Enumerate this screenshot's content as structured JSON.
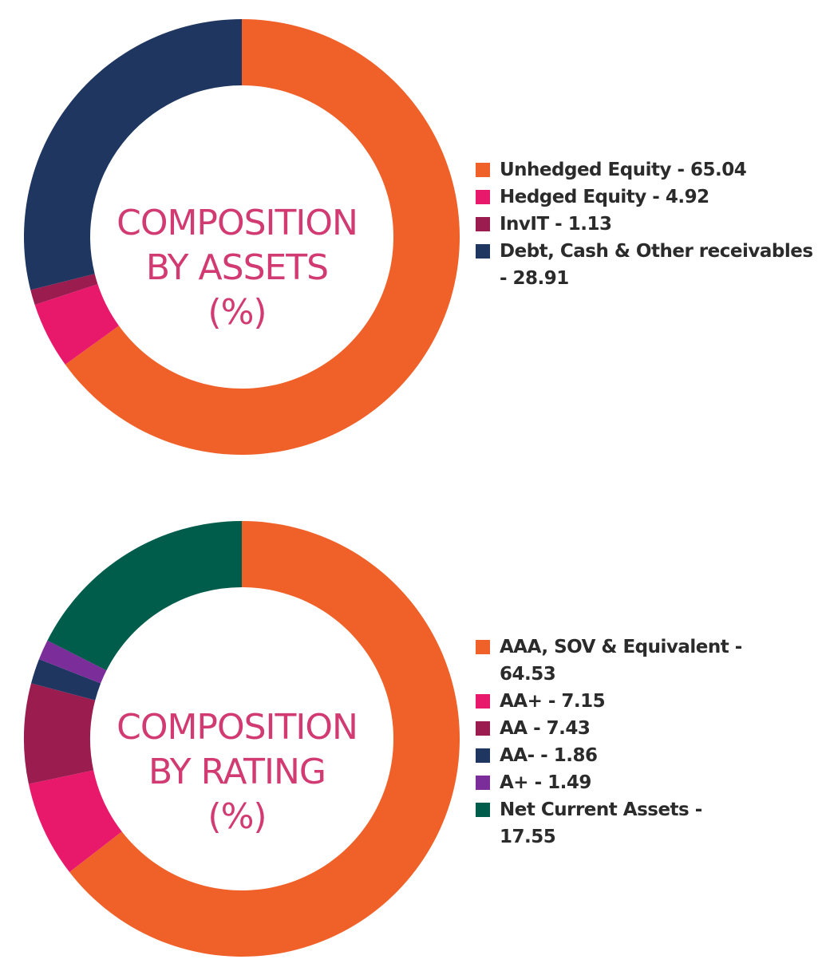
{
  "chart_data": [
    {
      "type": "pie",
      "title": "COMPOSITION BY ASSETS (%)",
      "center_lines": [
        "COMPOSITION",
        "BY ASSETS",
        "(%)"
      ],
      "labels": [
        "Unhedged Equity",
        "Hedged Equity",
        "InvIT",
        "Debt, Cash & Other receivables"
      ],
      "values": [
        65.04,
        4.92,
        1.13,
        28.91
      ],
      "colors": [
        "#f0612a",
        "#e8196b",
        "#9b1c4f",
        "#1e3660"
      ],
      "legend_text": [
        "Unhedged Equity - 65.04",
        "Hedged Equity - 4.92",
        "InvIT - 1.13",
        "Debt, Cash & Other receivables - 28.91"
      ],
      "legend_position": "right"
    },
    {
      "type": "pie",
      "title": "COMPOSITION BY RATING (%)",
      "center_lines": [
        "COMPOSITION",
        "BY RATING",
        "(%)"
      ],
      "labels": [
        "AAA, SOV & Equivalent",
        "AA+",
        "AA",
        "AA-",
        "A+",
        "Net Current Assets"
      ],
      "values": [
        64.53,
        7.15,
        7.43,
        1.86,
        1.49,
        17.55
      ],
      "colors": [
        "#f0612a",
        "#e8196b",
        "#9b1c4f",
        "#1e3660",
        "#7b2d9a",
        "#005c4b"
      ],
      "legend_text": [
        "AAA, SOV & Equivalent - 64.53",
        "AA+ - 7.15",
        "AA - 7.43",
        "AA- - 1.86",
        "A+ - 1.49",
        "Net Current Assets - 17.55"
      ],
      "legend_position": "right"
    }
  ]
}
